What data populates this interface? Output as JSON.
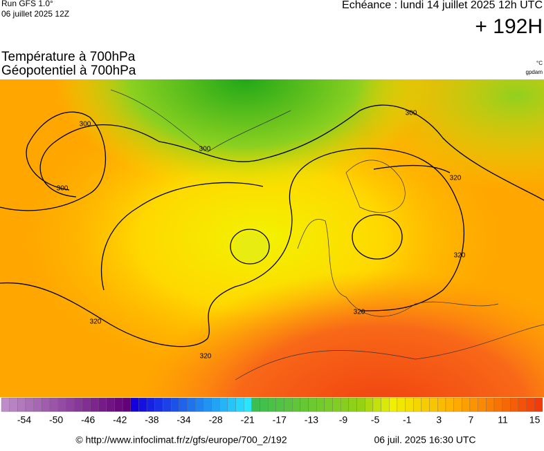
{
  "header": {
    "run": "Run GFS 1.0°",
    "date": "06 juillet 2025 12Z",
    "echeance": "Echéance : lundi 14 juillet 2025 12h UTC",
    "lead": "+ 192H"
  },
  "titles": {
    "field1": "Température à 700hPa",
    "field2": "Géopotentiel à 700hPa",
    "unit1": "°C",
    "unit2": "gpdam"
  },
  "contour_labels": [
    "300",
    "300",
    "300",
    "300",
    "320",
    "320",
    "320",
    "320",
    "320"
  ],
  "colorbar": {
    "ticks": [
      -54,
      -50,
      -46,
      -42,
      -38,
      -34,
      -28,
      -21,
      -17,
      -13,
      -9,
      -5,
      -1,
      3,
      7,
      11,
      15
    ]
  },
  "footer": {
    "url": "© http://www.infoclimat.fr/z/gfs/europe/700_2/192",
    "issued": "06 juil. 2025 16:30 UTC"
  }
}
